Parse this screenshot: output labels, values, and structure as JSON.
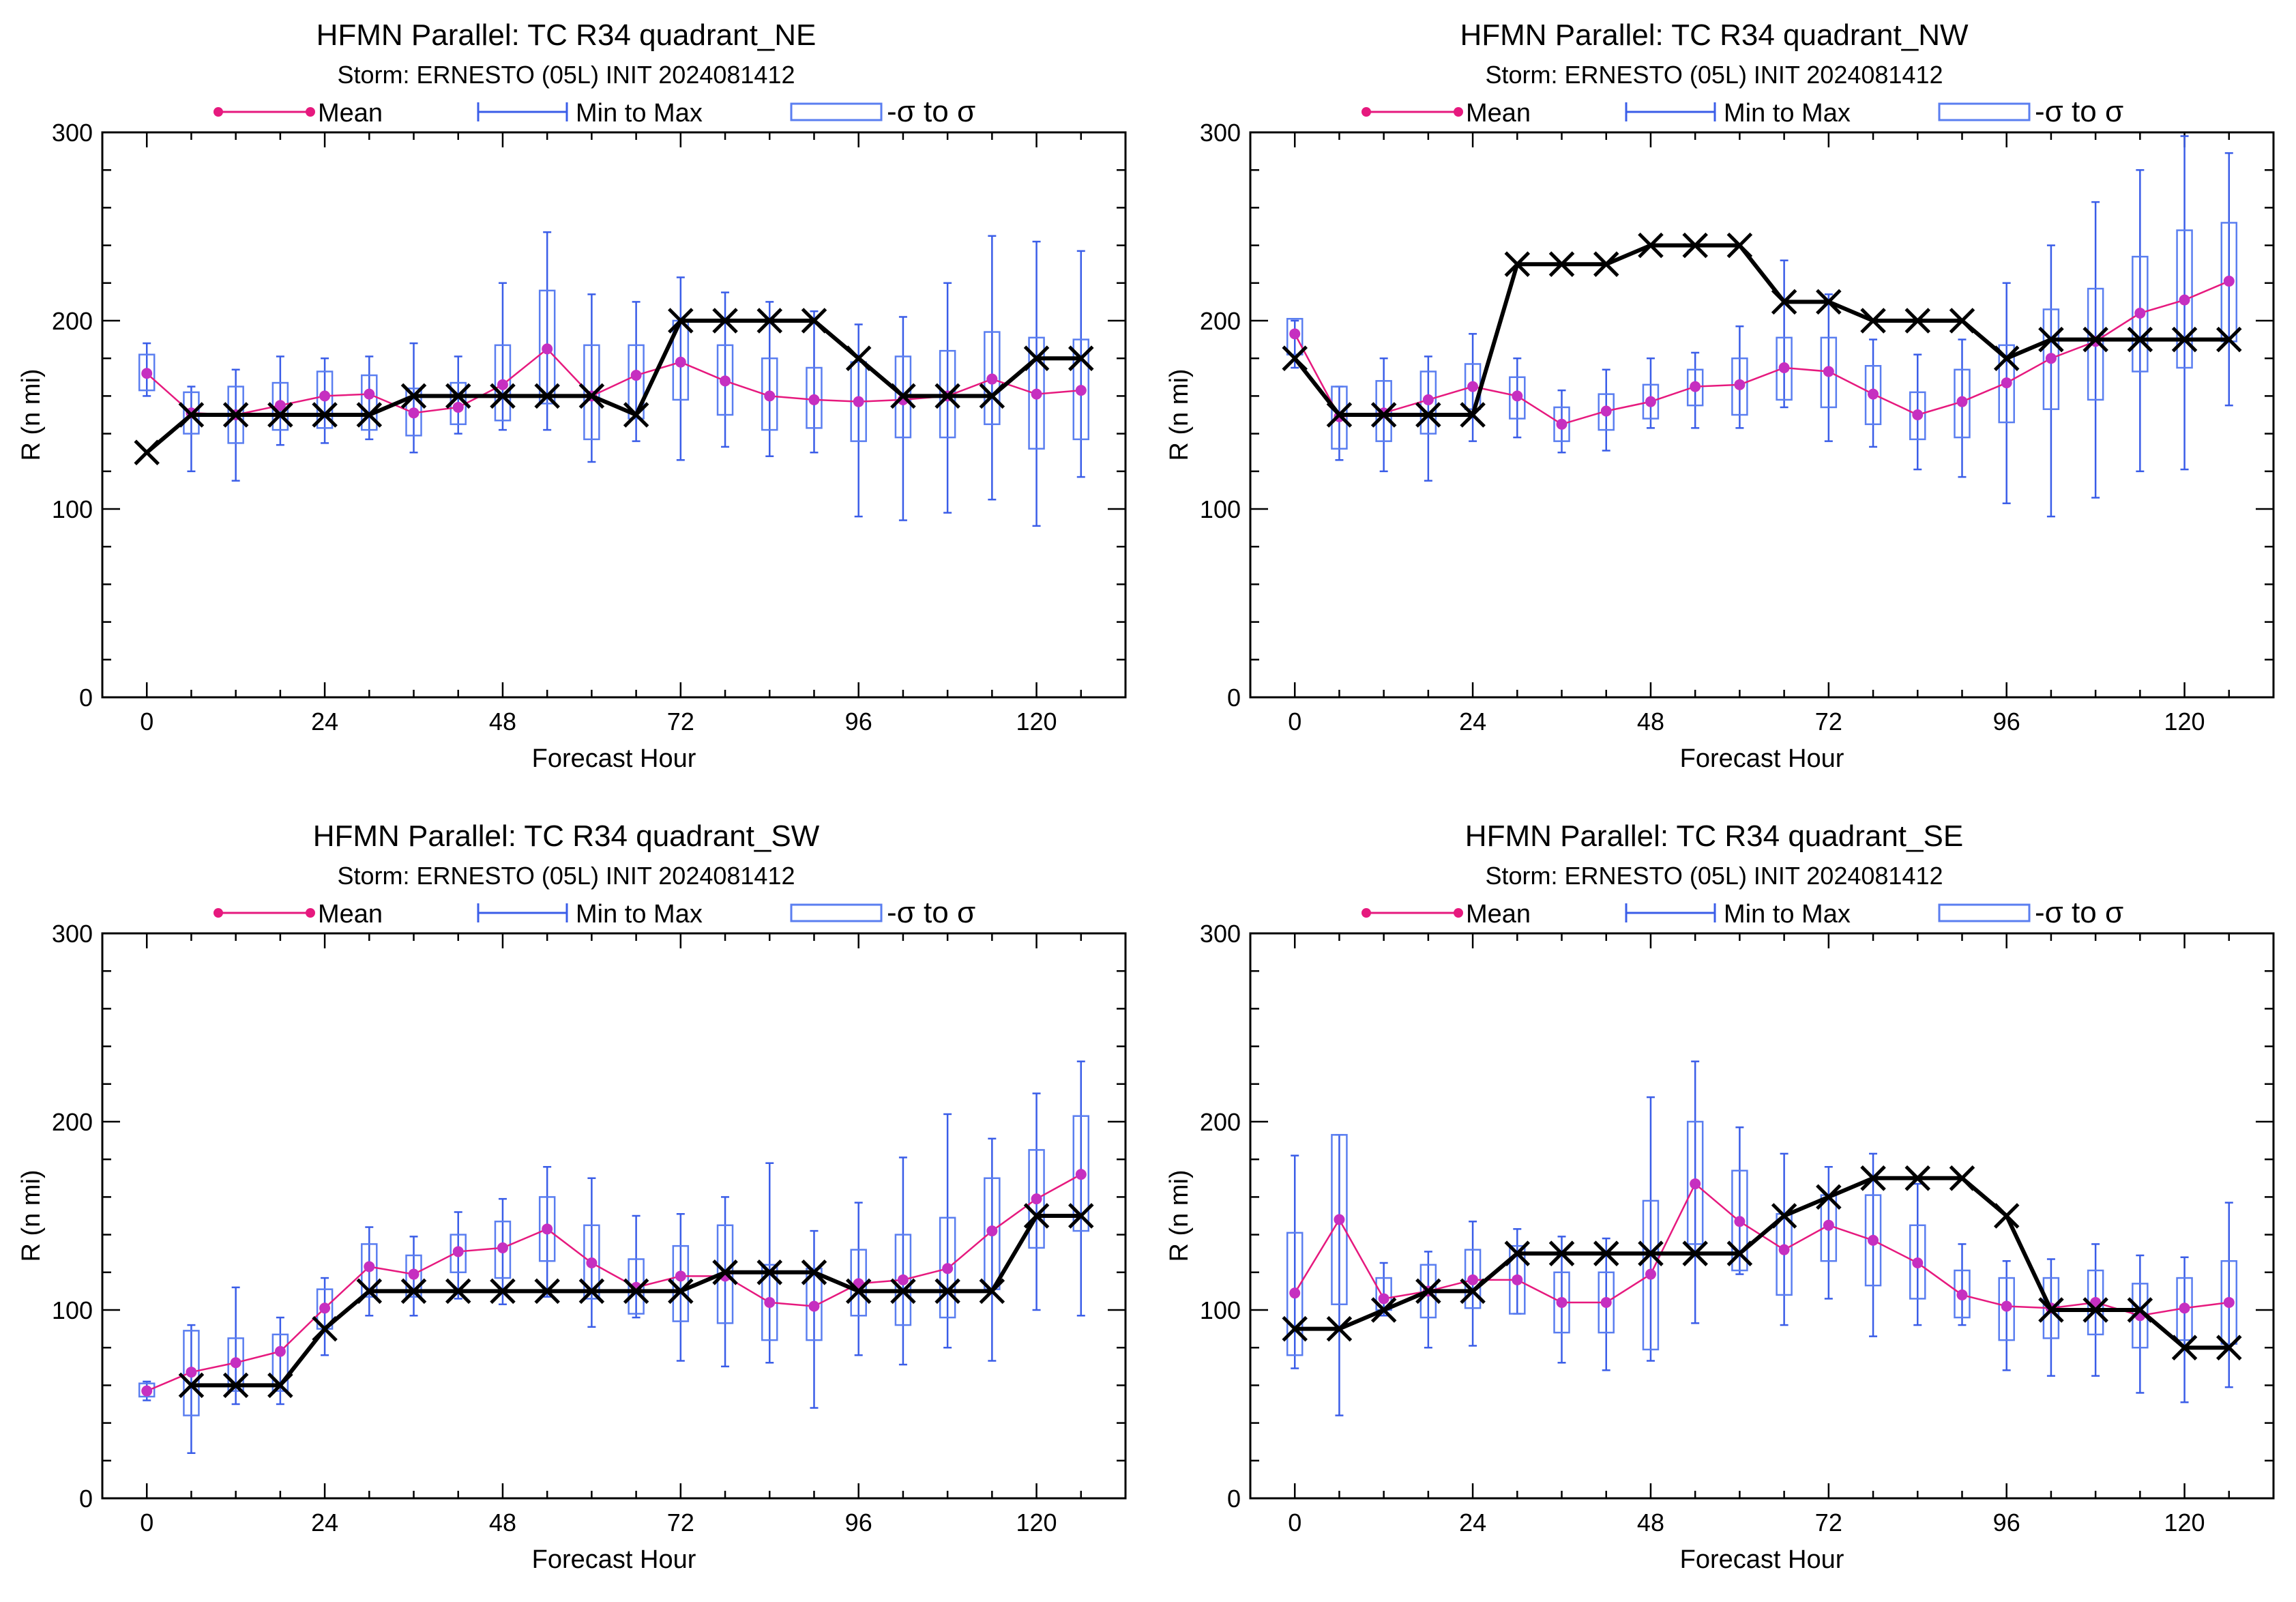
{
  "colors": {
    "mean": "#e6197e",
    "mean_dot": "#c62fc0",
    "minmax": "#3a5de8",
    "sigma": "#5a7ef0",
    "obs": "#000000"
  },
  "legend": {
    "mean": "Mean",
    "minmax": "Min to Max",
    "sigma": "-σ to σ"
  },
  "chart_data": [
    {
      "type": "box",
      "title": "HFMN Parallel: TC  R34 quadrant_NE",
      "subtitle": "Storm: ERNESTO (05L) INIT 2024081412",
      "xlabel": "Forecast Hour",
      "ylabel": "R (n mi)",
      "xlim": [
        -6,
        132
      ],
      "ylim": [
        0,
        300
      ],
      "xticks": [
        "0",
        "24",
        "48",
        "72",
        "96",
        "120"
      ],
      "yticks": [
        "0",
        "100",
        "200",
        "300"
      ],
      "hours": [
        0,
        6,
        12,
        18,
        24,
        30,
        36,
        42,
        48,
        54,
        60,
        66,
        72,
        78,
        84,
        90,
        96,
        102,
        108,
        114,
        120,
        126
      ],
      "mean": [
        172,
        151,
        150,
        155,
        160,
        161,
        151,
        154,
        166,
        185,
        160,
        171,
        178,
        168,
        160,
        158,
        157,
        158,
        160,
        169,
        161,
        163
      ],
      "min": [
        160,
        120,
        115,
        134,
        135,
        137,
        130,
        140,
        142,
        142,
        125,
        136,
        126,
        133,
        128,
        130,
        96,
        94,
        98,
        105,
        91,
        117
      ],
      "max": [
        188,
        165,
        174,
        181,
        180,
        181,
        188,
        181,
        220,
        247,
        214,
        210,
        223,
        215,
        210,
        205,
        198,
        202,
        220,
        245,
        242,
        237
      ],
      "sd_lo": [
        163,
        140,
        135,
        142,
        143,
        142,
        139,
        145,
        147,
        156,
        137,
        148,
        158,
        150,
        142,
        143,
        136,
        138,
        138,
        145,
        132,
        137
      ],
      "sd_hi": [
        182,
        162,
        165,
        167,
        173,
        171,
        164,
        167,
        187,
        216,
        187,
        187,
        200,
        187,
        180,
        175,
        178,
        181,
        184,
        194,
        191,
        190
      ],
      "obs_hours": [
        0,
        6,
        12,
        18,
        24,
        30,
        36,
        42,
        48,
        54,
        60,
        66,
        72,
        78,
        84,
        90,
        96,
        102,
        108,
        114,
        120,
        126
      ],
      "obs": [
        130,
        150,
        150,
        150,
        150,
        150,
        160,
        160,
        160,
        160,
        160,
        150,
        200,
        200,
        200,
        200,
        180,
        160,
        160,
        160,
        180,
        180
      ]
    },
    {
      "type": "box",
      "title": "HFMN Parallel: TC  R34 quadrant_NW",
      "subtitle": "Storm: ERNESTO (05L) INIT 2024081412",
      "xlabel": "Forecast Hour",
      "ylabel": "R (n mi)",
      "xlim": [
        -6,
        132
      ],
      "ylim": [
        0,
        300
      ],
      "xticks": [
        "0",
        "24",
        "48",
        "72",
        "96",
        "120"
      ],
      "yticks": [
        "0",
        "100",
        "200",
        "300"
      ],
      "hours": [
        0,
        6,
        12,
        18,
        24,
        30,
        36,
        42,
        48,
        54,
        60,
        66,
        72,
        78,
        84,
        90,
        96,
        102,
        108,
        114,
        120,
        126
      ],
      "mean": [
        193,
        149,
        151,
        158,
        165,
        160,
        145,
        152,
        157,
        165,
        166,
        175,
        173,
        161,
        150,
        157,
        167,
        180,
        189,
        204,
        211,
        221
      ],
      "min": [
        175,
        126,
        120,
        115,
        136,
        138,
        130,
        131,
        143,
        143,
        143,
        154,
        136,
        133,
        121,
        117,
        103,
        96,
        106,
        120,
        121,
        155
      ],
      "max": [
        200,
        165,
        180,
        181,
        193,
        180,
        163,
        174,
        180,
        183,
        197,
        232,
        214,
        190,
        182,
        190,
        220,
        240,
        263,
        280,
        298,
        289
      ],
      "sd_lo": [
        182,
        132,
        136,
        140,
        153,
        148,
        136,
        142,
        148,
        155,
        150,
        158,
        154,
        145,
        137,
        138,
        146,
        153,
        158,
        173,
        175,
        189
      ],
      "sd_hi": [
        201,
        165,
        168,
        173,
        177,
        170,
        154,
        161,
        166,
        174,
        180,
        191,
        191,
        176,
        162,
        174,
        187,
        206,
        217,
        234,
        248,
        252
      ],
      "obs_hours": [
        0,
        6,
        12,
        18,
        24,
        30,
        36,
        42,
        48,
        54,
        60,
        66,
        72,
        78,
        84,
        90,
        96,
        102,
        108,
        114,
        120,
        126
      ],
      "obs": [
        180,
        150,
        150,
        150,
        150,
        230,
        230,
        230,
        240,
        240,
        240,
        210,
        210,
        200,
        200,
        200,
        180,
        190,
        190,
        190,
        190,
        190
      ]
    },
    {
      "type": "box",
      "title": "HFMN Parallel: TC  R34 quadrant_SW",
      "subtitle": "Storm: ERNESTO (05L) INIT 2024081412",
      "xlabel": "Forecast Hour",
      "ylabel": "R (n mi)",
      "xlim": [
        -6,
        132
      ],
      "ylim": [
        0,
        300
      ],
      "xticks": [
        "0",
        "24",
        "48",
        "72",
        "96",
        "120"
      ],
      "yticks": [
        "0",
        "100",
        "200",
        "300"
      ],
      "hours": [
        0,
        6,
        12,
        18,
        24,
        30,
        36,
        42,
        48,
        54,
        60,
        66,
        72,
        78,
        84,
        90,
        96,
        102,
        108,
        114,
        120,
        126
      ],
      "mean": [
        57,
        67,
        72,
        78,
        101,
        123,
        119,
        131,
        133,
        143,
        125,
        112,
        118,
        118,
        104,
        102,
        114,
        116,
        122,
        142,
        159,
        172
      ],
      "min": [
        52,
        24,
        50,
        50,
        76,
        97,
        97,
        106,
        103,
        107,
        91,
        96,
        73,
        70,
        72,
        48,
        76,
        71,
        80,
        73,
        100,
        97
      ],
      "max": [
        62,
        92,
        112,
        96,
        117,
        144,
        139,
        152,
        159,
        176,
        170,
        150,
        151,
        160,
        178,
        142,
        157,
        181,
        204,
        191,
        215,
        232
      ],
      "sd_lo": [
        54,
        44,
        57,
        57,
        90,
        107,
        107,
        120,
        117,
        126,
        106,
        98,
        94,
        93,
        84,
        84,
        97,
        92,
        96,
        111,
        133,
        142
      ],
      "sd_hi": [
        61,
        89,
        85,
        87,
        111,
        135,
        129,
        140,
        147,
        160,
        145,
        127,
        134,
        145,
        124,
        122,
        132,
        140,
        149,
        170,
        185,
        203
      ],
      "obs_hours": [
        6,
        12,
        18,
        24,
        30,
        36,
        42,
        48,
        54,
        60,
        66,
        72,
        78,
        84,
        90,
        96,
        102,
        108,
        114,
        120,
        126
      ],
      "obs": [
        60,
        60,
        60,
        90,
        110,
        110,
        110,
        110,
        110,
        110,
        110,
        110,
        120,
        120,
        120,
        110,
        110,
        110,
        110,
        150,
        150
      ]
    },
    {
      "type": "box",
      "title": "HFMN Parallel: TC  R34 quadrant_SE",
      "subtitle": "Storm: ERNESTO (05L) INIT 2024081412",
      "xlabel": "Forecast Hour",
      "ylabel": "R (n mi)",
      "xlim": [
        -6,
        132
      ],
      "ylim": [
        0,
        300
      ],
      "xticks": [
        "0",
        "24",
        "48",
        "72",
        "96",
        "120"
      ],
      "yticks": [
        "0",
        "100",
        "200",
        "300"
      ],
      "hours": [
        0,
        6,
        12,
        18,
        24,
        30,
        36,
        42,
        48,
        54,
        60,
        66,
        72,
        78,
        84,
        90,
        96,
        102,
        108,
        114,
        120,
        126
      ],
      "mean": [
        109,
        148,
        106,
        110,
        116,
        116,
        104,
        104,
        119,
        167,
        147,
        132,
        145,
        137,
        125,
        108,
        102,
        101,
        104,
        97,
        101,
        104
      ],
      "min": [
        69,
        44,
        97,
        80,
        81,
        98,
        72,
        68,
        73,
        93,
        119,
        92,
        106,
        86,
        92,
        92,
        68,
        65,
        65,
        56,
        51,
        59
      ],
      "max": [
        182,
        193,
        125,
        131,
        147,
        143,
        139,
        138,
        213,
        232,
        197,
        183,
        176,
        183,
        167,
        135,
        126,
        127,
        135,
        129,
        128,
        157
      ],
      "sd_lo": [
        76,
        103,
        100,
        96,
        101,
        98,
        88,
        88,
        79,
        135,
        121,
        108,
        126,
        113,
        106,
        96,
        84,
        85,
        87,
        80,
        84,
        82
      ],
      "sd_hi": [
        141,
        193,
        117,
        124,
        132,
        134,
        120,
        120,
        158,
        200,
        174,
        151,
        161,
        161,
        145,
        121,
        117,
        117,
        121,
        114,
        117,
        126
      ],
      "obs_hours": [
        0,
        6,
        12,
        18,
        24,
        30,
        36,
        42,
        48,
        54,
        60,
        66,
        72,
        78,
        84,
        90,
        96,
        102,
        108,
        114,
        120,
        126
      ],
      "obs": [
        90,
        90,
        100,
        110,
        110,
        130,
        130,
        130,
        130,
        130,
        130,
        150,
        160,
        170,
        170,
        170,
        150,
        100,
        100,
        100,
        80,
        80
      ]
    }
  ]
}
